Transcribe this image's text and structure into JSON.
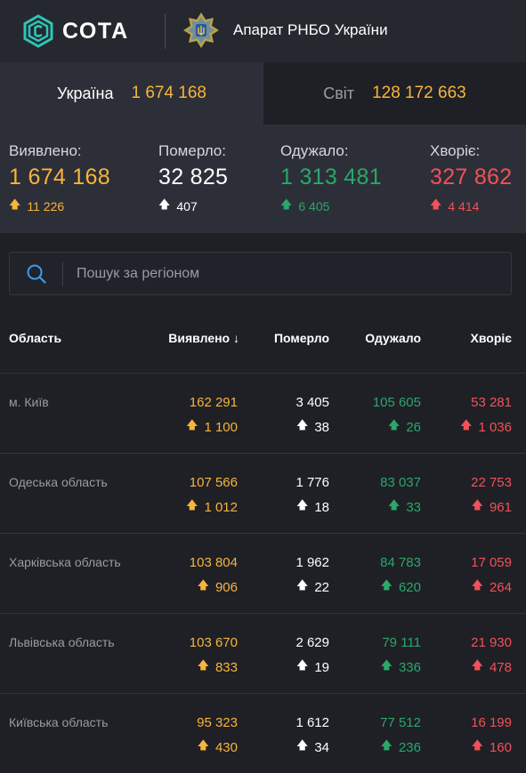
{
  "header": {
    "logo_text": "СОТА",
    "org_title": "Апарат РНБО України"
  },
  "tabs": [
    {
      "label": "Україна",
      "value": "1 674 168"
    },
    {
      "label": "Світ",
      "value": "128 172 663"
    }
  ],
  "stats": {
    "detected": {
      "label": "Виявлено:",
      "value": "1 674 168",
      "delta": "11 226"
    },
    "died": {
      "label": "Померло:",
      "value": "32 825",
      "delta": "407"
    },
    "recovered": {
      "label": "Одужало:",
      "value": "1 313 481",
      "delta": "6 405"
    },
    "sick": {
      "label": "Хворіє:",
      "value": "327 862",
      "delta": "4 414"
    }
  },
  "search": {
    "placeholder": "Пошук за регіоном"
  },
  "table": {
    "headers": {
      "region": "Область",
      "detected": "Виявлено",
      "sort_arrow": "↓",
      "died": "Померло",
      "recovered": "Одужало",
      "sick": "Хворіє"
    },
    "rows": [
      {
        "region": "м. Київ",
        "detected": "162 291",
        "detected_delta": "1 100",
        "died": "3 405",
        "died_delta": "38",
        "recovered": "105 605",
        "recovered_delta": "26",
        "sick": "53 281",
        "sick_delta": "1 036"
      },
      {
        "region": "Одеська область",
        "detected": "107 566",
        "detected_delta": "1 012",
        "died": "1 776",
        "died_delta": "18",
        "recovered": "83 037",
        "recovered_delta": "33",
        "sick": "22 753",
        "sick_delta": "961"
      },
      {
        "region": "Харківська область",
        "detected": "103 804",
        "detected_delta": "906",
        "died": "1 962",
        "died_delta": "22",
        "recovered": "84 783",
        "recovered_delta": "620",
        "sick": "17 059",
        "sick_delta": "264"
      },
      {
        "region": "Львівська область",
        "detected": "103 670",
        "detected_delta": "833",
        "died": "2 629",
        "died_delta": "19",
        "recovered": "79 111",
        "recovered_delta": "336",
        "sick": "21 930",
        "sick_delta": "478"
      },
      {
        "region": "Київська область",
        "detected": "95 323",
        "detected_delta": "430",
        "died": "1 612",
        "died_delta": "34",
        "recovered": "77 512",
        "recovered_delta": "236",
        "sick": "16 199",
        "sick_delta": "160"
      }
    ]
  },
  "colors": {
    "detected": "#f9b43b",
    "died": "#ffffff",
    "recovered": "#2aa76a",
    "sick": "#f25157",
    "brand_accent": "#2ec4b6"
  },
  "icons": {
    "logo": "sota-logo-icon",
    "emblem": "rnbo-emblem-icon",
    "search": "search-icon",
    "arrow": "arrow-up-icon"
  }
}
